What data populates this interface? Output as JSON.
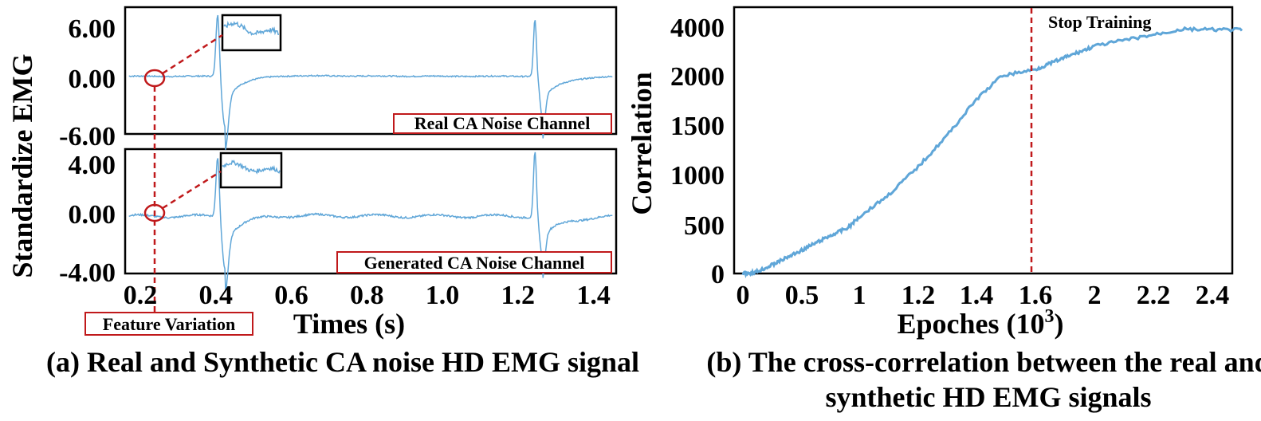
{
  "captions": {
    "a": "(a) Real and Synthetic CA noise HD EMG signal",
    "b": "(b) The cross-correlation between the real and synthetic HD EMG signals"
  },
  "colors": {
    "signal": "#5fa6d8",
    "annotation": "#c0191b",
    "frame": "#000000"
  },
  "chart_data": [
    {
      "type": "line",
      "panel": "a",
      "xlabel": "Times (s)",
      "ylabel": "Standardize EMG",
      "x_ticks": [
        "0.2",
        "0.4",
        "0.6",
        "0.8",
        "1.0",
        "1.2",
        "1.4"
      ],
      "xlim": [
        0.16,
        1.46
      ],
      "subplots": [
        {
          "label": "Real CA Noise Channel",
          "y_ticks": [
            "6.00",
            "0.00",
            "-6.00"
          ],
          "ylim": [
            -6.5,
            7.8
          ],
          "spikes": [
            {
              "x": 0.405,
              "peak": 7.3
            },
            {
              "x": 0.425,
              "trough": -5.8
            },
            {
              "x": 1.245,
              "peak": 6.5
            },
            {
              "x": 1.265,
              "trough": -4.8
            }
          ]
        },
        {
          "label": "Generated CA Noise Channel",
          "y_ticks": [
            "4.00",
            "0.00",
            "-4.00"
          ],
          "ylim": [
            -4.6,
            5.4
          ],
          "spikes": [
            {
              "x": 0.405,
              "peak": 5.0
            },
            {
              "x": 0.425,
              "trough": -4.2
            },
            {
              "x": 1.245,
              "peak": 5.3
            },
            {
              "x": 1.265,
              "trough": -3.5
            }
          ]
        }
      ],
      "annotation": "Feature Variation"
    },
    {
      "type": "line",
      "panel": "b",
      "xlabel": "Epoches (10",
      "xlabel_sup": "3",
      "xlabel_close": ")",
      "ylabel": "Correlation",
      "x_ticks": [
        "0",
        "0.5",
        "1",
        "1.2",
        "1.4",
        "1.6",
        "2",
        "2.2",
        "2.4"
      ],
      "y_ticks": [
        "0",
        "500",
        "1000",
        "1500",
        "2000",
        "4000"
      ],
      "series": [
        {
          "points": [
            [
              0,
              0
            ],
            [
              0.1,
              10
            ],
            [
              0.2,
              60
            ],
            [
              0.3,
              120
            ],
            [
              0.45,
              210
            ],
            [
              0.6,
              300
            ],
            [
              0.75,
              390
            ],
            [
              0.9,
              470
            ],
            [
              1.0,
              580
            ],
            [
              1.1,
              800
            ],
            [
              1.2,
              1080
            ],
            [
              1.3,
              1400
            ],
            [
              1.4,
              1760
            ],
            [
              1.5,
              2040
            ],
            [
              1.6,
              2300
            ],
            [
              1.72,
              2640
            ],
            [
              1.84,
              2970
            ],
            [
              1.96,
              3290
            ],
            [
              2.08,
              3620
            ],
            [
              2.2,
              3940
            ],
            [
              2.3,
              4200
            ],
            [
              2.4,
              4180
            ],
            [
              2.5,
              4170
            ]
          ]
        }
      ],
      "annotation": "Stop Training"
    }
  ]
}
